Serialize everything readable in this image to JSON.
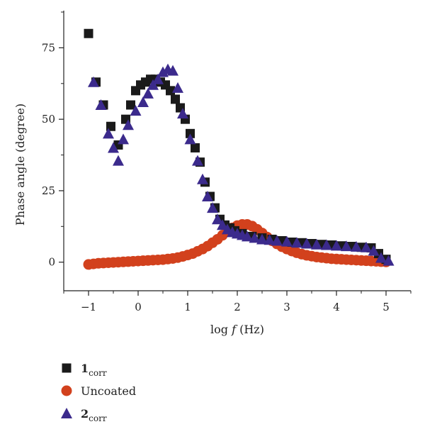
{
  "chart_data": {
    "type": "scatter",
    "title": "",
    "xlabel_prefix": "log ",
    "xlabel_var": "f",
    "xlabel_suffix": " (Hz)",
    "ylabel": "Phase angle (degree)",
    "xlim": [
      -1.5,
      5.5
    ],
    "ylim": [
      -10,
      88
    ],
    "xticks": [
      -1,
      0,
      1,
      2,
      3,
      4,
      5
    ],
    "xtick_labels": [
      "−1",
      "0",
      "1",
      "2",
      "3",
      "4",
      "5"
    ],
    "yticks": [
      0,
      25,
      50,
      75
    ],
    "ytick_labels": [
      "0",
      "25",
      "50",
      "75"
    ],
    "legend_position": "bottom-left",
    "series": [
      {
        "name_main": "1",
        "name_sub": "corr",
        "marker": "square",
        "color": "#1a1a1a",
        "x": [
          -1.0,
          -0.85,
          -0.7,
          -0.55,
          -0.4,
          -0.25,
          -0.15,
          -0.05,
          0.05,
          0.15,
          0.25,
          0.35,
          0.45,
          0.55,
          0.65,
          0.75,
          0.85,
          0.95,
          1.05,
          1.15,
          1.25,
          1.35,
          1.45,
          1.55,
          1.65,
          1.75,
          1.85,
          1.95,
          2.1,
          2.3,
          2.5,
          2.7,
          2.9,
          3.1,
          3.3,
          3.5,
          3.7,
          3.9,
          4.1,
          4.3,
          4.5,
          4.7,
          4.85,
          5.0
        ],
        "y": [
          80,
          63,
          55,
          47.5,
          41,
          50,
          55,
          60,
          62,
          63,
          64,
          64,
          63,
          62,
          60,
          57,
          54,
          50,
          45,
          40,
          35,
          28,
          23,
          19,
          15,
          13,
          12,
          11,
          10,
          9,
          8.5,
          8,
          7.5,
          7,
          6.8,
          6.5,
          6.2,
          6,
          5.7,
          5.5,
          5.2,
          5,
          3,
          1
        ]
      },
      {
        "name_main": "Uncoated",
        "name_sub": "",
        "marker": "circle",
        "color": "#d2411d",
        "x": [
          -1.0,
          -0.9,
          -0.8,
          -0.7,
          -0.6,
          -0.5,
          -0.4,
          -0.3,
          -0.2,
          -0.1,
          0.0,
          0.1,
          0.2,
          0.3,
          0.4,
          0.5,
          0.6,
          0.7,
          0.8,
          0.9,
          1.0,
          1.1,
          1.2,
          1.3,
          1.4,
          1.5,
          1.6,
          1.7,
          1.8,
          1.9,
          2.0,
          2.1,
          2.2,
          2.3,
          2.4,
          2.5,
          2.6,
          2.7,
          2.8,
          2.9,
          3.0,
          3.1,
          3.2,
          3.3,
          3.4,
          3.5,
          3.6,
          3.7,
          3.8,
          3.9,
          4.0,
          4.1,
          4.2,
          4.3,
          4.4,
          4.5,
          4.6,
          4.7,
          4.8,
          4.9,
          5.0
        ],
        "y": [
          -0.8,
          -0.6,
          -0.4,
          -0.3,
          -0.2,
          -0.1,
          0.0,
          0.1,
          0.2,
          0.3,
          0.4,
          0.5,
          0.6,
          0.7,
          0.8,
          0.9,
          1.1,
          1.3,
          1.6,
          2.0,
          2.5,
          3.0,
          3.8,
          4.6,
          5.6,
          6.8,
          8.0,
          9.4,
          10.8,
          12.0,
          12.8,
          13.2,
          13.2,
          12.6,
          11.5,
          10.2,
          8.8,
          7.5,
          6.4,
          5.4,
          4.6,
          3.9,
          3.3,
          2.8,
          2.4,
          2.1,
          1.8,
          1.6,
          1.4,
          1.2,
          1.1,
          1.0,
          0.9,
          0.8,
          0.7,
          0.6,
          0.5,
          0.4,
          0.3,
          0.2,
          0.1
        ]
      },
      {
        "name_main": "2",
        "name_sub": "corr",
        "marker": "triangle",
        "color": "#3b2a8c",
        "x": [
          -0.9,
          -0.75,
          -0.6,
          -0.5,
          -0.4,
          -0.3,
          -0.2,
          -0.05,
          0.1,
          0.2,
          0.3,
          0.4,
          0.5,
          0.6,
          0.7,
          0.8,
          0.9,
          1.05,
          1.2,
          1.3,
          1.4,
          1.5,
          1.6,
          1.7,
          1.8,
          1.9,
          2.0,
          2.1,
          2.2,
          2.35,
          2.5,
          2.65,
          2.8,
          3.0,
          3.2,
          3.4,
          3.6,
          3.8,
          4.0,
          4.2,
          4.4,
          4.6,
          4.75,
          4.9,
          5.05
        ],
        "y": [
          63,
          55,
          45,
          40,
          35.5,
          43,
          48,
          53,
          56,
          59,
          62,
          64,
          66.5,
          67.5,
          67,
          61,
          52,
          43,
          35.5,
          29,
          23,
          19,
          15,
          13,
          11.5,
          10.5,
          10,
          9.5,
          9,
          8.5,
          8,
          7.8,
          7.5,
          7.2,
          6.8,
          6.5,
          6.2,
          6,
          5.8,
          5.6,
          5.4,
          5.2,
          4,
          1.5,
          0.5
        ]
      }
    ]
  }
}
